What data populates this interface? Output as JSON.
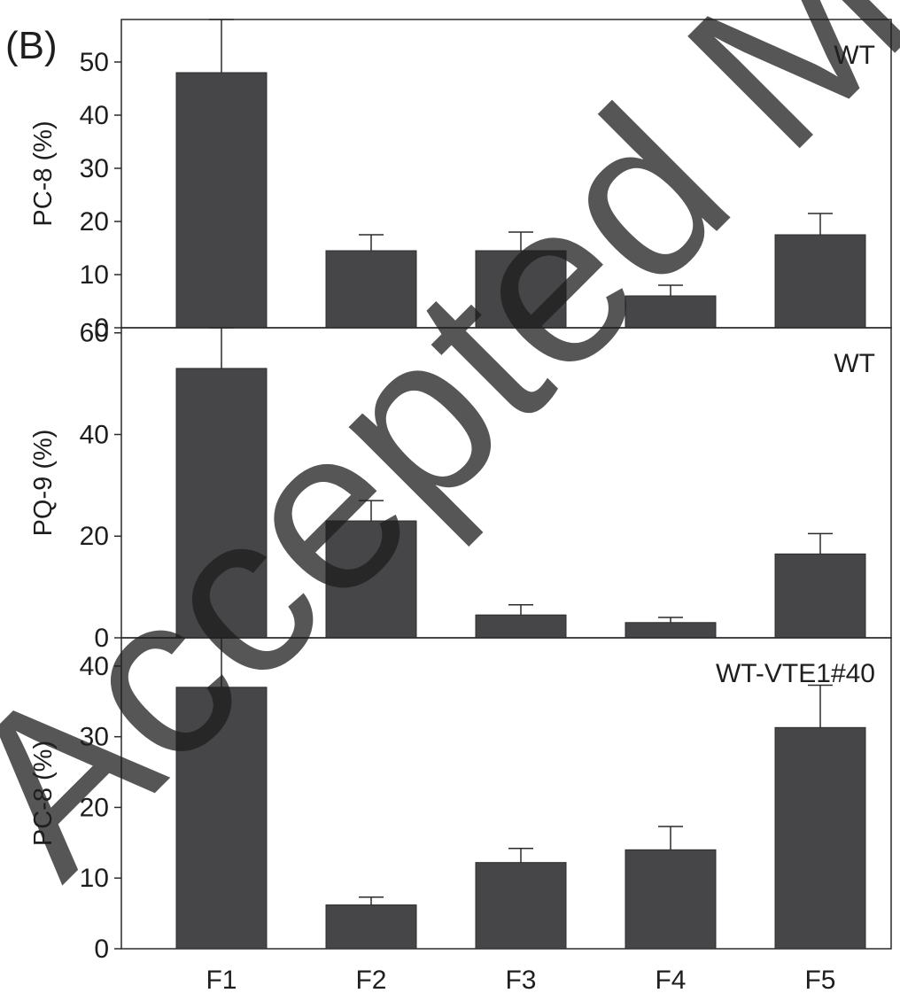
{
  "figure_label": "(B)",
  "watermark": "Accepted Manus",
  "colors": {
    "bar": "#464548",
    "axis": "#2a2a2a",
    "text": "#1e1e1e",
    "watermark": "#c9c9c9"
  },
  "chart_data": [
    {
      "type": "bar",
      "title": "WT",
      "ylabel": "PC-8 (%)",
      "xlabel": "",
      "categories": [
        "F1",
        "F2",
        "F3",
        "F4",
        "F5"
      ],
      "values": [
        48,
        14.5,
        14.5,
        6,
        17.5
      ],
      "errors": [
        10,
        3,
        3.5,
        2,
        4
      ],
      "ylim": [
        0,
        58
      ],
      "yticks": [
        0,
        10,
        20,
        30,
        40,
        50
      ],
      "show_xtick_labels": false,
      "grid": false
    },
    {
      "type": "bar",
      "title": "WT",
      "ylabel": "PQ-9 (%)",
      "xlabel": "",
      "categories": [
        "F1",
        "F2",
        "F3",
        "F4",
        "F5"
      ],
      "values": [
        53,
        23,
        4.5,
        3,
        16.5
      ],
      "errors": [
        8,
        4,
        2,
        1,
        4
      ],
      "ylim": [
        0,
        61
      ],
      "yticks": [
        0,
        20,
        40,
        60
      ],
      "show_xtick_labels": false,
      "grid": false
    },
    {
      "type": "bar",
      "title": "WT-VTE1#40",
      "ylabel": "PC-8 (%)",
      "xlabel": "",
      "categories": [
        "F1",
        "F2",
        "F3",
        "F4",
        "F5"
      ],
      "values": [
        37,
        6.2,
        12.2,
        14,
        31.3
      ],
      "errors": [
        7,
        1.1,
        2,
        3.3,
        6
      ],
      "ylim": [
        0,
        44
      ],
      "yticks": [
        0,
        10,
        20,
        30,
        40
      ],
      "show_xtick_labels": true,
      "grid": false
    }
  ]
}
